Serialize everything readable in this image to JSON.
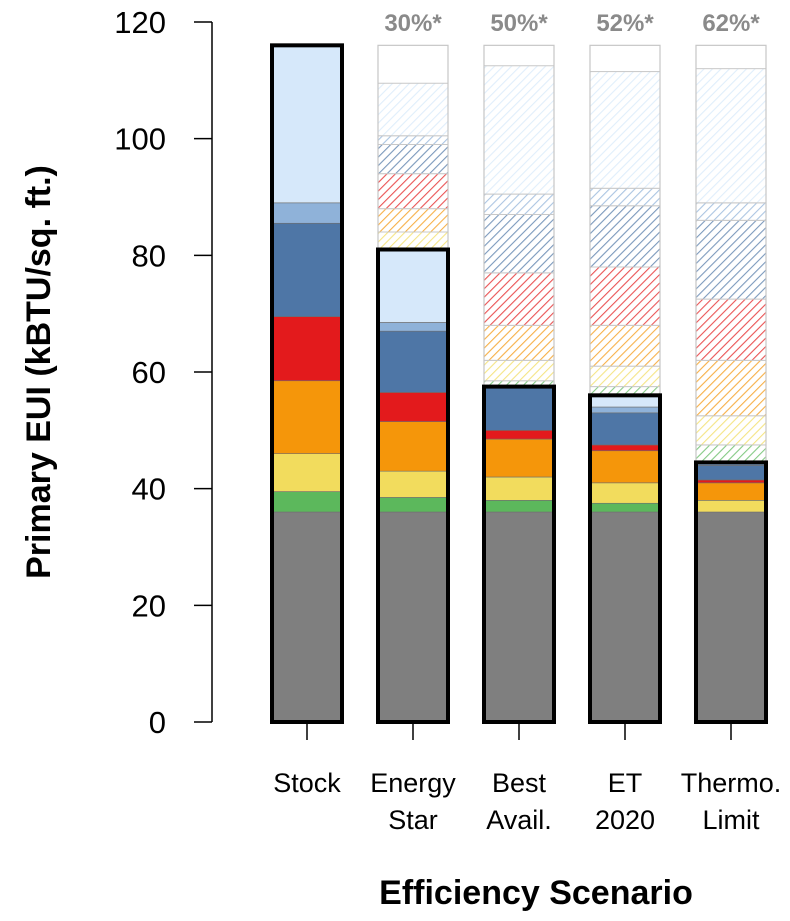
{
  "chart_data": {
    "type": "bar",
    "stacked": true,
    "xlabel": "Efficiency Scenario",
    "ylabel": "Primary EUI (kBTU/sq. ft.)",
    "ylim": [
      0,
      120
    ],
    "yticks": [
      0,
      20,
      40,
      60,
      80,
      100,
      120
    ],
    "categories": [
      "Stock",
      "Energy Star",
      "Best Avail.",
      "ET 2020",
      "Thermo. Limit"
    ],
    "category_lines": [
      [
        "Stock"
      ],
      [
        "Energy",
        "Star"
      ],
      [
        "Best",
        "Avail."
      ],
      [
        "ET",
        "2020"
      ],
      [
        "Thermo.",
        "Limit"
      ]
    ],
    "savings_labels": [
      "",
      "30%*",
      "50%*",
      "52%*",
      "62%*"
    ],
    "segment_colors": [
      "#7f7f7f",
      "#5cb85c",
      "#f2dc5d",
      "#f5960a",
      "#e31a1c",
      "#4e76a6",
      "#8fb2d9",
      "#d6e8fa"
    ],
    "stacks": [
      {
        "category": "Stock",
        "total": 116,
        "solid": [
          36,
          3.5,
          6.5,
          12.5,
          11,
          16,
          3.5,
          27
        ],
        "hatched": []
      },
      {
        "category": "Energy Star",
        "total": 81,
        "solid": [
          36,
          2.5,
          4.5,
          8.5,
          5,
          10.5,
          1.5,
          12.5
        ],
        "hatched": [
          0,
          0,
          3,
          4,
          6,
          5,
          1.5,
          9
        ]
      },
      {
        "category": "Best Avail.",
        "total": 57.5,
        "solid": [
          36,
          2,
          4,
          6.5,
          1.5,
          7.5,
          0,
          0
        ],
        "hatched": [
          0,
          1,
          3.5,
          6,
          9,
          10,
          3.5,
          22
        ]
      },
      {
        "category": "ET 2020",
        "total": 56,
        "solid": [
          36,
          1.5,
          3.5,
          5.5,
          1,
          5.5,
          1,
          2
        ],
        "hatched": [
          0,
          1.5,
          3.5,
          7,
          10,
          10.5,
          3,
          20
        ]
      },
      {
        "category": "Thermo. Limit",
        "total": 44.5,
        "solid": [
          36,
          0,
          2,
          3,
          0.5,
          2.5,
          0.5,
          0
        ],
        "hatched": [
          0,
          3,
          5,
          9.5,
          10.5,
          13.5,
          3,
          23
        ]
      }
    ]
  }
}
